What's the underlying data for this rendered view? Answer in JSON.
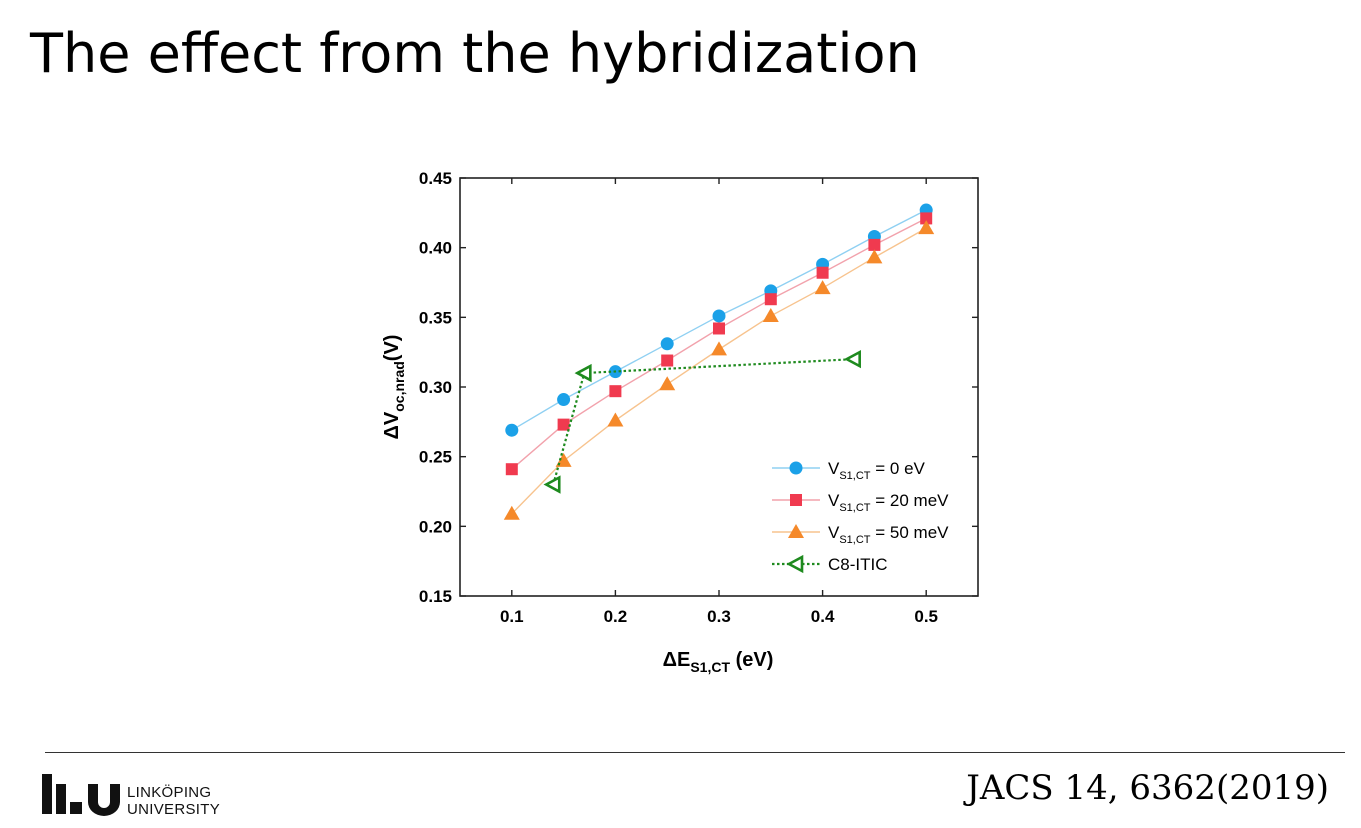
{
  "slide": {
    "title": "The effect from the hybridization",
    "citation": "JACS 14, 6362(2019)",
    "logo": {
      "line1": "LINKÖPING",
      "line2": "UNIVERSITY",
      "mark": "LiU"
    }
  },
  "chart_data": {
    "type": "line",
    "xlabel": {
      "main": "ΔE",
      "sub": "S1,CT",
      "unit": " (eV)"
    },
    "ylabel": {
      "main": "ΔV",
      "sub": "oc,nrad",
      "unit": "(V)"
    },
    "xlim": [
      0.05,
      0.55
    ],
    "ylim": [
      0.15,
      0.45
    ],
    "xticks": [
      "0.1",
      "0.2",
      "0.3",
      "0.4",
      "0.5"
    ],
    "yticks": [
      "0.15",
      "0.20",
      "0.25",
      "0.30",
      "0.35",
      "0.40",
      "0.45"
    ],
    "grid": false,
    "legend_position": "bottom-right",
    "series": [
      {
        "name_prefix": "V",
        "name_sub": "S1,CT",
        "name_suffix": " = 0 eV",
        "color": "#1ba1e8",
        "line_color": "#8fd0f2",
        "marker": "circle",
        "dashed": false,
        "x": [
          0.1,
          0.15,
          0.2,
          0.25,
          0.3,
          0.35,
          0.4,
          0.45,
          0.5
        ],
        "y": [
          0.269,
          0.291,
          0.311,
          0.331,
          0.351,
          0.369,
          0.388,
          0.408,
          0.427
        ]
      },
      {
        "name_prefix": "V",
        "name_sub": "S1,CT",
        "name_suffix": " = 20 meV",
        "color": "#f03a4f",
        "line_color": "#f2a2ac",
        "marker": "square",
        "dashed": false,
        "x": [
          0.1,
          0.15,
          0.2,
          0.25,
          0.3,
          0.35,
          0.4,
          0.45,
          0.5
        ],
        "y": [
          0.241,
          0.273,
          0.297,
          0.319,
          0.342,
          0.363,
          0.382,
          0.402,
          0.421
        ]
      },
      {
        "name_prefix": "V",
        "name_sub": "S1,CT",
        "name_suffix": " = 50 meV",
        "color": "#f5892a",
        "line_color": "#f7c38e",
        "marker": "triangle",
        "dashed": false,
        "x": [
          0.1,
          0.15,
          0.2,
          0.25,
          0.3,
          0.35,
          0.4,
          0.45,
          0.5
        ],
        "y": [
          0.209,
          0.247,
          0.276,
          0.302,
          0.327,
          0.351,
          0.371,
          0.393,
          0.414
        ]
      },
      {
        "name_prefix": "C8-ITIC",
        "name_sub": "",
        "name_suffix": "",
        "color": "#1e8a1e",
        "line_color": "#1e8a1e",
        "marker": "triangle-left",
        "dashed": true,
        "x": [
          0.14,
          0.17,
          0.43
        ],
        "y": [
          0.23,
          0.31,
          0.32
        ]
      }
    ]
  }
}
